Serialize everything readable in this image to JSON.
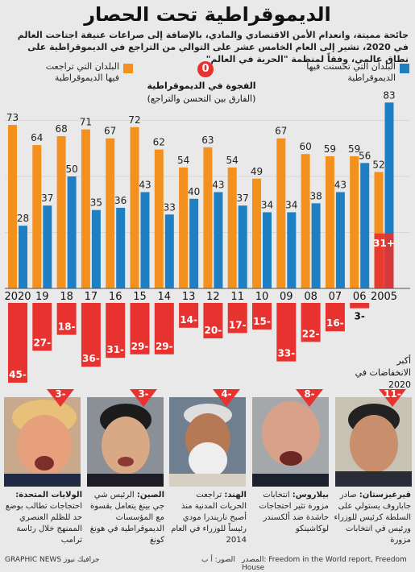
{
  "title": "الديموقراطية تحت الحصار",
  "subtitle": "جائحة مميتة، وانعدام الأمن الاقتصادي والمادي، بالإضافة إلى صراعات عنيفة اجتاحت العالم في 2020، تشير إلى العام الخامس عشر على التوالي من التراجع في الديموقراطية على نطاق عالمي، وفقاً لمنظمة \"الحرية في العالم\"",
  "legend": {
    "declined": "البلدان التي تراجعت فيها الديموقراطية",
    "improved": "البلدان التي تحسنت فيها الديموقراطية",
    "declined_color": "#f4901e",
    "improved_color": "#1e7fc2"
  },
  "gap": {
    "zero_label": "0",
    "title": "الفجوة في الديموقراطية",
    "subtitle": "(الفارق بين التحسن والتراجع)"
  },
  "chart_data": {
    "type": "bar",
    "title": "الديموقراطية تحت الحصار",
    "categories": [
      "2020",
      "19",
      "18",
      "17",
      "16",
      "15",
      "14",
      "13",
      "12",
      "11",
      "10",
      "09",
      "08",
      "07",
      "06",
      "2005"
    ],
    "series": [
      {
        "name": "البلدان التي تراجعت فيها الديموقراطية",
        "values": [
          73,
          64,
          68,
          71,
          67,
          72,
          62,
          54,
          63,
          54,
          49,
          67,
          60,
          59,
          59,
          52
        ]
      },
      {
        "name": "البلدان التي تحسنت فيها الديموقراطية",
        "values": [
          28,
          37,
          50,
          35,
          36,
          43,
          33,
          40,
          43,
          37,
          34,
          34,
          38,
          43,
          56,
          83
        ]
      },
      {
        "name": "الفجوة في الديموقراطية",
        "values": [
          -45,
          -27,
          -18,
          -36,
          -31,
          -29,
          -29,
          -14,
          -20,
          -17,
          -15,
          -33,
          -22,
          -16,
          -3,
          31
        ]
      }
    ],
    "gap_labels": [
      "45-",
      "27-",
      "18-",
      "36-",
      "31-",
      "29-",
      "29-",
      "14-",
      "20-",
      "17-",
      "15-",
      "33-",
      "22-",
      "16-",
      "3-",
      "31+"
    ]
  },
  "declines": {
    "label": "أكبر الانخفاضات في 2020",
    "items": [
      {
        "value": "3-",
        "country": "الولايات المتحدة:",
        "name": "ترامب",
        "text": "احتجاجات تطالب بوضع حد للظلم العنصري الممنهج خلال رئاسة ترامب"
      },
      {
        "value": "3-",
        "country": "الصين:",
        "name": "جي بينغ",
        "text": "الرئيس شي جي بينغ يتعامل بقسوة مع المؤسسات الديموقراطية في هونغ كونغ"
      },
      {
        "value": "4-",
        "country": "الهند:",
        "name": "ناريندرا مودي",
        "text": "تراجعت الحريات المدنية منذ أصبح ناريندرا مودي رئيساً للوزراء في العام 2014"
      },
      {
        "value": "8-",
        "country": "بيلاروس:",
        "name": "ألكسندر لوكاشينكو",
        "text": "انتخابات مزورة تثير احتجاجات حاشدة ضد ألكسندر لوكاشينكو"
      },
      {
        "value": "11-",
        "country": "قيرغيزستان:",
        "name": "جاباروف",
        "text": "صادر جاباروف يستولي على السلطة كرئيس للوزراء ورئيس في انتخابات مزورة"
      }
    ]
  },
  "footer": {
    "source": "المصدر: Freedom in the World report, Freedom House",
    "photos": "الصور: أ ب",
    "brand": "GRAPHIC NEWS جرافيك نيوز"
  }
}
